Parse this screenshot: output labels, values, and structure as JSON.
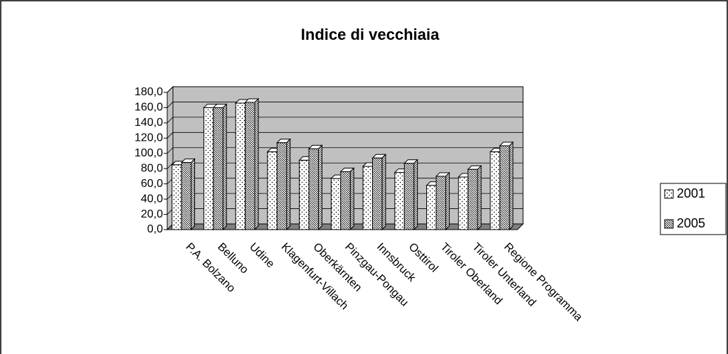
{
  "chart_data": {
    "type": "bar3d",
    "title": "Indice di vecchiaia",
    "categories": [
      "P.A. Bolzano",
      "Belluno",
      "Udine",
      "Klagenfurt-Villach",
      "Oberkärnten",
      "Pinzgau-Pongau",
      "Innsbruck",
      "Osttirol",
      "Tiroler Oberland",
      "Tiroler Unterland",
      "Regione Programma"
    ],
    "series": [
      {
        "name": "2001",
        "color": "#ffffff",
        "pattern": "dots",
        "values": [
          85,
          160,
          166,
          102,
          91,
          67,
          83,
          75,
          58,
          69,
          102
        ]
      },
      {
        "name": "2005",
        "color": "#ffffff",
        "pattern": "hatch",
        "values": [
          88,
          160,
          167,
          114,
          106,
          76,
          94,
          87,
          70,
          79,
          110
        ]
      }
    ],
    "ylim": [
      0,
      180
    ],
    "yticks": [
      {
        "value": 0,
        "label": "0,0"
      },
      {
        "value": 20,
        "label": "20,0"
      },
      {
        "value": 40,
        "label": "40,0"
      },
      {
        "value": 60,
        "label": "60,0"
      },
      {
        "value": 80,
        "label": "80,0"
      },
      {
        "value": 100,
        "label": "100,0"
      },
      {
        "value": 120,
        "label": "120,0"
      },
      {
        "value": 140,
        "label": "140,0"
      },
      {
        "value": 160,
        "label": "160,0"
      },
      {
        "value": 180,
        "label": "180,0"
      }
    ],
    "grid": true,
    "legend": "right"
  }
}
